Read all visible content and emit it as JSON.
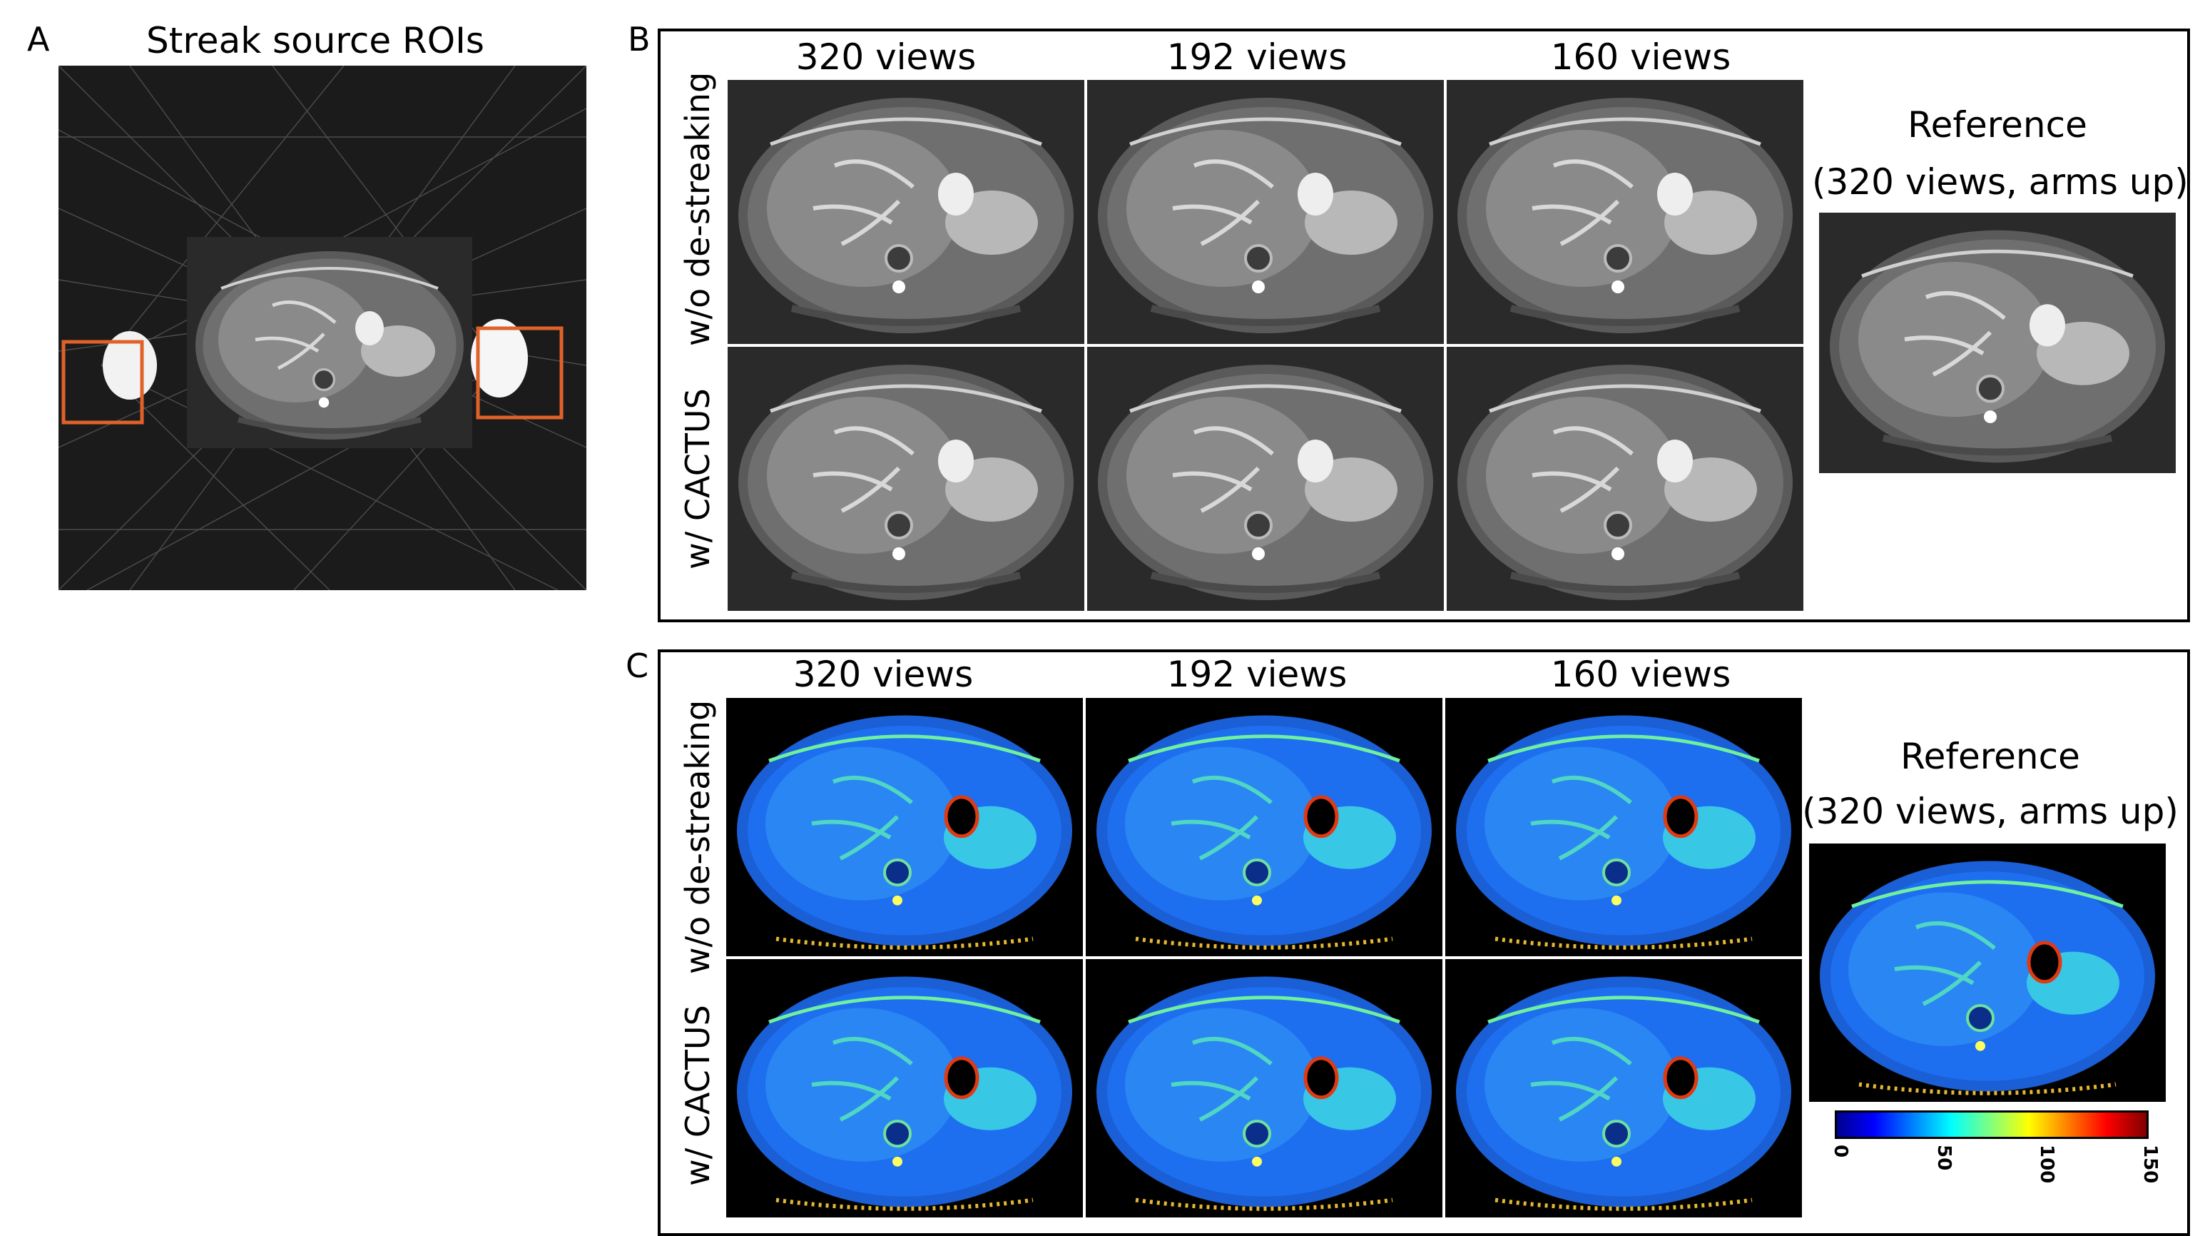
{
  "panel_a": {
    "letter": "A",
    "title": "Streak source ROIs",
    "roi_color": "#e0622a"
  },
  "panel_b": {
    "letter": "B",
    "columns": [
      "320 views",
      "192 views",
      "160 views"
    ],
    "rows": [
      "w/o de-streaking",
      "w/ CACTUS"
    ],
    "reference_title_line1": "Reference",
    "reference_title_line2": "(320 views, arms up)"
  },
  "panel_c": {
    "letter": "C",
    "columns": [
      "320 views",
      "192 views",
      "160 views"
    ],
    "rows": [
      "w/o de-streaking",
      "w/ CACTUS"
    ],
    "reference_title_line1": "Reference",
    "reference_title_line2": "(320 views, arms up)",
    "colorbar": {
      "ticks": [
        "0",
        "50",
        "100",
        "150"
      ],
      "range": [
        0,
        150
      ],
      "colormap": "jet"
    }
  }
}
